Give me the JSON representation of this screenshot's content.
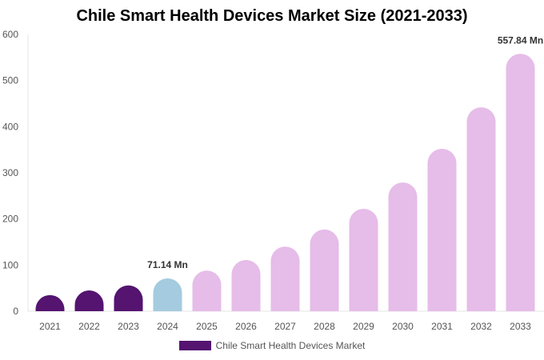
{
  "chart_data": {
    "type": "bar",
    "title": "Chile Smart Health Devices Market Size (2021-2033)",
    "categories": [
      "2021",
      "2022",
      "2023",
      "2024",
      "2025",
      "2026",
      "2027",
      "2028",
      "2029",
      "2030",
      "2031",
      "2032",
      "2033"
    ],
    "series": [
      {
        "name": "Chile Smart Health Devices Market",
        "values": [
          35,
          45,
          56,
          71.14,
          88,
          111,
          140,
          177,
          222,
          279,
          352,
          442,
          557.84
        ]
      }
    ],
    "data_labels": {
      "3": "71.14 Mn",
      "12": "557.84 Mn"
    },
    "ylim": [
      0,
      600
    ],
    "yticks": [
      0,
      100,
      200,
      300,
      400,
      500,
      600
    ],
    "grid": false,
    "legend": "bottom",
    "colors": {
      "historical": "#541470",
      "base_year": "#a4cbdf",
      "forecast": "#e6bce8"
    }
  }
}
